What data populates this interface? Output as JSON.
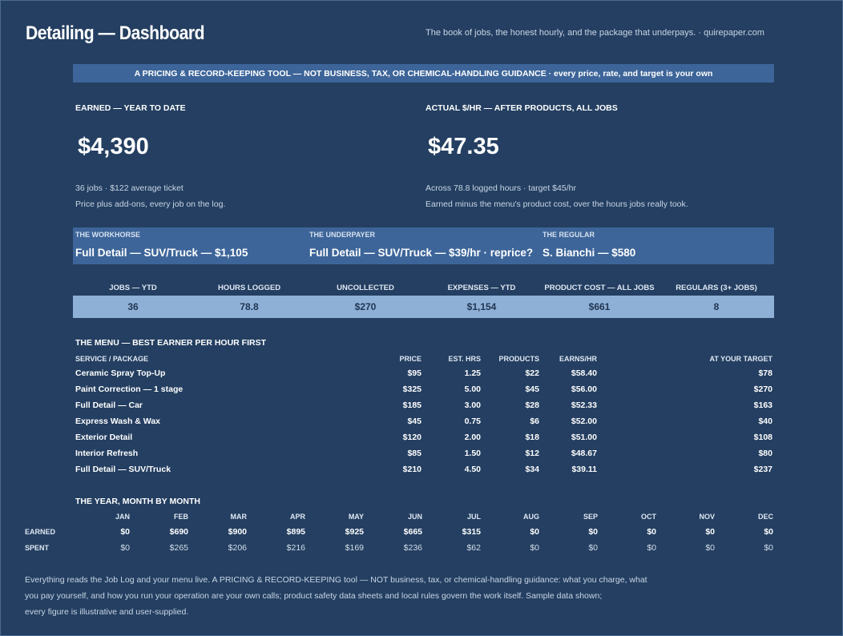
{
  "header": {
    "title": "Detailing — Dashboard",
    "tagline": "The book of jobs, the honest hourly, and the package that underpays.  ·  quirepaper.com"
  },
  "banner": "A PRICING & RECORD-KEEPING TOOL — NOT BUSINESS, TAX, OR CHEMICAL-HANDLING GUIDANCE  ·  every price, rate, and target is your own",
  "earned": {
    "label": "EARNED — YEAR TO DATE",
    "value": "$4,390",
    "line1": "36 jobs  ·  $122 average ticket",
    "line2": "Price plus add-ons, every job on the log."
  },
  "hourly": {
    "label": "ACTUAL $/HR — AFTER PRODUCTS, ALL JOBS",
    "value": "$47.35",
    "line1": "Across 78.8 logged hours  ·  target $45/hr",
    "line2": "Earned minus the menu's product cost, over the hours jobs really took."
  },
  "highlights": [
    {
      "label": "THE WORKHORSE",
      "value": "Full Detail — SUV/Truck — $1,105"
    },
    {
      "label": "THE UNDERPAYER",
      "value": "Full Detail — SUV/Truck — $39/hr · reprice?"
    },
    {
      "label": "THE REGULAR",
      "value": "S. Bianchi — $580"
    }
  ],
  "kpis": [
    {
      "label": "JOBS — YTD",
      "value": "36"
    },
    {
      "label": "HOURS LOGGED",
      "value": "78.8"
    },
    {
      "label": "UNCOLLECTED",
      "value": "$270"
    },
    {
      "label": "EXPENSES — YTD",
      "value": "$1,154"
    },
    {
      "label": "PRODUCT COST — ALL JOBS",
      "value": "$661"
    },
    {
      "label": "REGULARS (3+ JOBS)",
      "value": "8"
    }
  ],
  "menu": {
    "title": "THE MENU — BEST EARNER PER HOUR FIRST",
    "headers": {
      "service": "SERVICE / PACKAGE",
      "price": "PRICE",
      "hours": "EST. HRS",
      "products": "PRODUCTS",
      "earns": "EARNS/HR",
      "target": "AT YOUR TARGET"
    },
    "rows": [
      {
        "service": "Ceramic Spray Top-Up",
        "price": "$95",
        "hours": "1.25",
        "products": "$22",
        "earns": "$58.40",
        "target": "$78"
      },
      {
        "service": "Paint Correction — 1 stage",
        "price": "$325",
        "hours": "5.00",
        "products": "$45",
        "earns": "$56.00",
        "target": "$270"
      },
      {
        "service": "Full Detail — Car",
        "price": "$185",
        "hours": "3.00",
        "products": "$28",
        "earns": "$52.33",
        "target": "$163"
      },
      {
        "service": "Express Wash & Wax",
        "price": "$45",
        "hours": "0.75",
        "products": "$6",
        "earns": "$52.00",
        "target": "$40"
      },
      {
        "service": "Exterior Detail",
        "price": "$120",
        "hours": "2.00",
        "products": "$18",
        "earns": "$51.00",
        "target": "$108"
      },
      {
        "service": "Interior Refresh",
        "price": "$85",
        "hours": "1.50",
        "products": "$12",
        "earns": "$48.67",
        "target": "$80"
      },
      {
        "service": "Full Detail — SUV/Truck",
        "price": "$210",
        "hours": "4.50",
        "products": "$34",
        "earns": "$39.11",
        "target": "$237"
      }
    ]
  },
  "year": {
    "title": "THE YEAR, MONTH BY MONTH",
    "earned_label": "EARNED",
    "spent_label": "SPENT",
    "months": [
      "JAN",
      "FEB",
      "MAR",
      "APR",
      "MAY",
      "JUN",
      "JUL",
      "AUG",
      "SEP",
      "OCT",
      "NOV",
      "DEC"
    ],
    "earned": [
      "$0",
      "$690",
      "$900",
      "$895",
      "$925",
      "$665",
      "$315",
      "$0",
      "$0",
      "$0",
      "$0",
      "$0"
    ],
    "spent": [
      "$0",
      "$265",
      "$206",
      "$216",
      "$169",
      "$236",
      "$62",
      "$0",
      "$0",
      "$0",
      "$0",
      "$0"
    ]
  },
  "footer": [
    "Everything reads the Job Log and your menu live. A PRICING & RECORD-KEEPING tool — NOT business, tax, or chemical-handling guidance: what you charge, what",
    "you pay yourself, and how you run your operation are your own calls; product safety data sheets and local rules govern the work itself. Sample data shown;",
    "every figure is illustrative and user-supplied."
  ]
}
